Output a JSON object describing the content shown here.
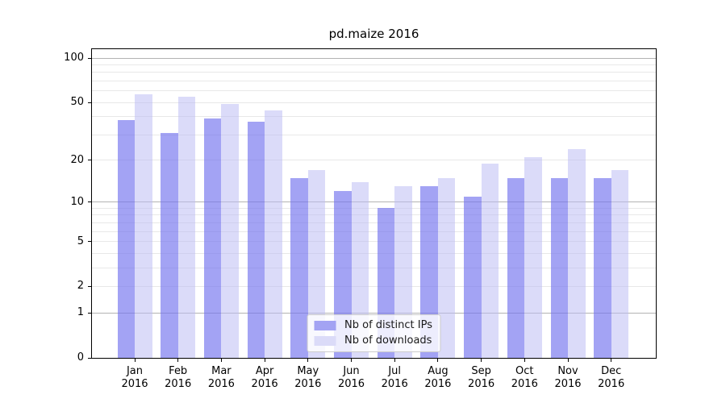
{
  "chart_data": {
    "type": "bar",
    "title": "pd.maize 2016",
    "xlabel": "",
    "ylabel": "",
    "categories": [
      "Jan 2016",
      "Feb 2016",
      "Mar 2016",
      "Apr 2016",
      "May 2016",
      "Jun 2016",
      "Jul 2016",
      "Aug 2016",
      "Sep 2016",
      "Oct 2016",
      "Nov 2016",
      "Dec 2016"
    ],
    "series": [
      {
        "name": "Nb of distinct IPs",
        "color": "#a3a3f3",
        "fill": "rgba(116,116,238,0.66)",
        "values": [
          38,
          31,
          39,
          37,
          15,
          12,
          9,
          13,
          11,
          15,
          15,
          15
        ]
      },
      {
        "name": "Nb of downloads",
        "color": "#dbdbf8",
        "fill": "rgba(186,186,243,0.52)",
        "values": [
          57,
          55,
          49,
          44,
          17,
          14,
          13,
          15,
          19,
          21,
          24,
          17
        ]
      }
    ],
    "yscale": "log1p",
    "ylim": [
      0,
      115
    ],
    "yticks": [
      0,
      1,
      2,
      5,
      10,
      20,
      50,
      100
    ],
    "minor_gridlines": [
      2,
      3,
      4,
      5,
      6,
      7,
      8,
      9,
      20,
      30,
      40,
      50,
      60,
      70,
      80,
      90
    ],
    "major_gridlines": [
      1,
      10,
      100
    ],
    "grid": true,
    "legend_position": "lower center"
  }
}
